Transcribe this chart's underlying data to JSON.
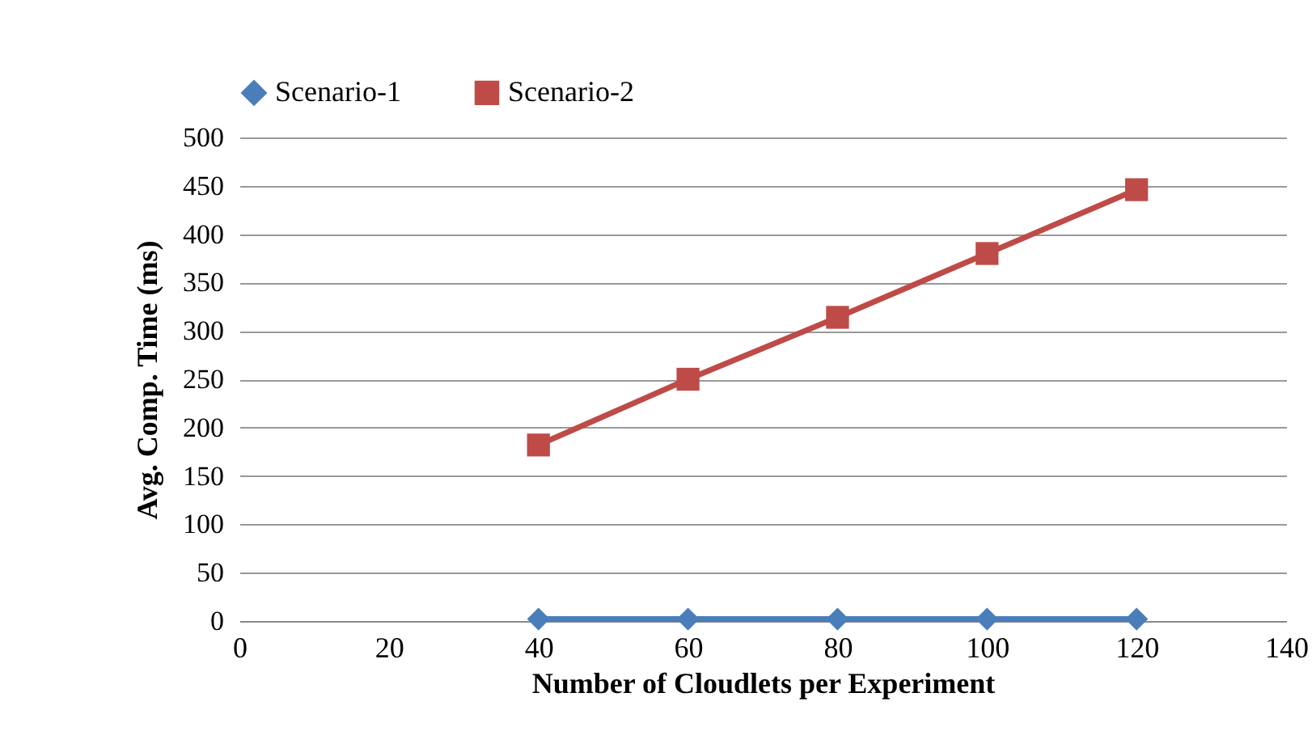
{
  "chart_data": {
    "type": "line",
    "xlabel": "Number of Cloudlets  per Experiment",
    "ylabel": "Avg. Comp. Time (ms)",
    "x": [
      40,
      60,
      80,
      100,
      120
    ],
    "series": [
      {
        "name": "Scenario-1",
        "color": "#4a7ebb",
        "marker": "diamond",
        "values": [
          2,
          2,
          2,
          2,
          2
        ]
      },
      {
        "name": "Scenario-2",
        "color": "#be4b48",
        "marker": "square",
        "values": [
          182,
          250,
          314,
          380,
          446
        ]
      }
    ],
    "xlim": [
      0,
      140
    ],
    "xticks": [
      0,
      20,
      40,
      60,
      80,
      100,
      120,
      140
    ],
    "ylim": [
      0,
      500
    ],
    "yticks": [
      0,
      50,
      100,
      150,
      200,
      250,
      300,
      350,
      400,
      450,
      500
    ],
    "grid": "y",
    "legend": "top"
  }
}
